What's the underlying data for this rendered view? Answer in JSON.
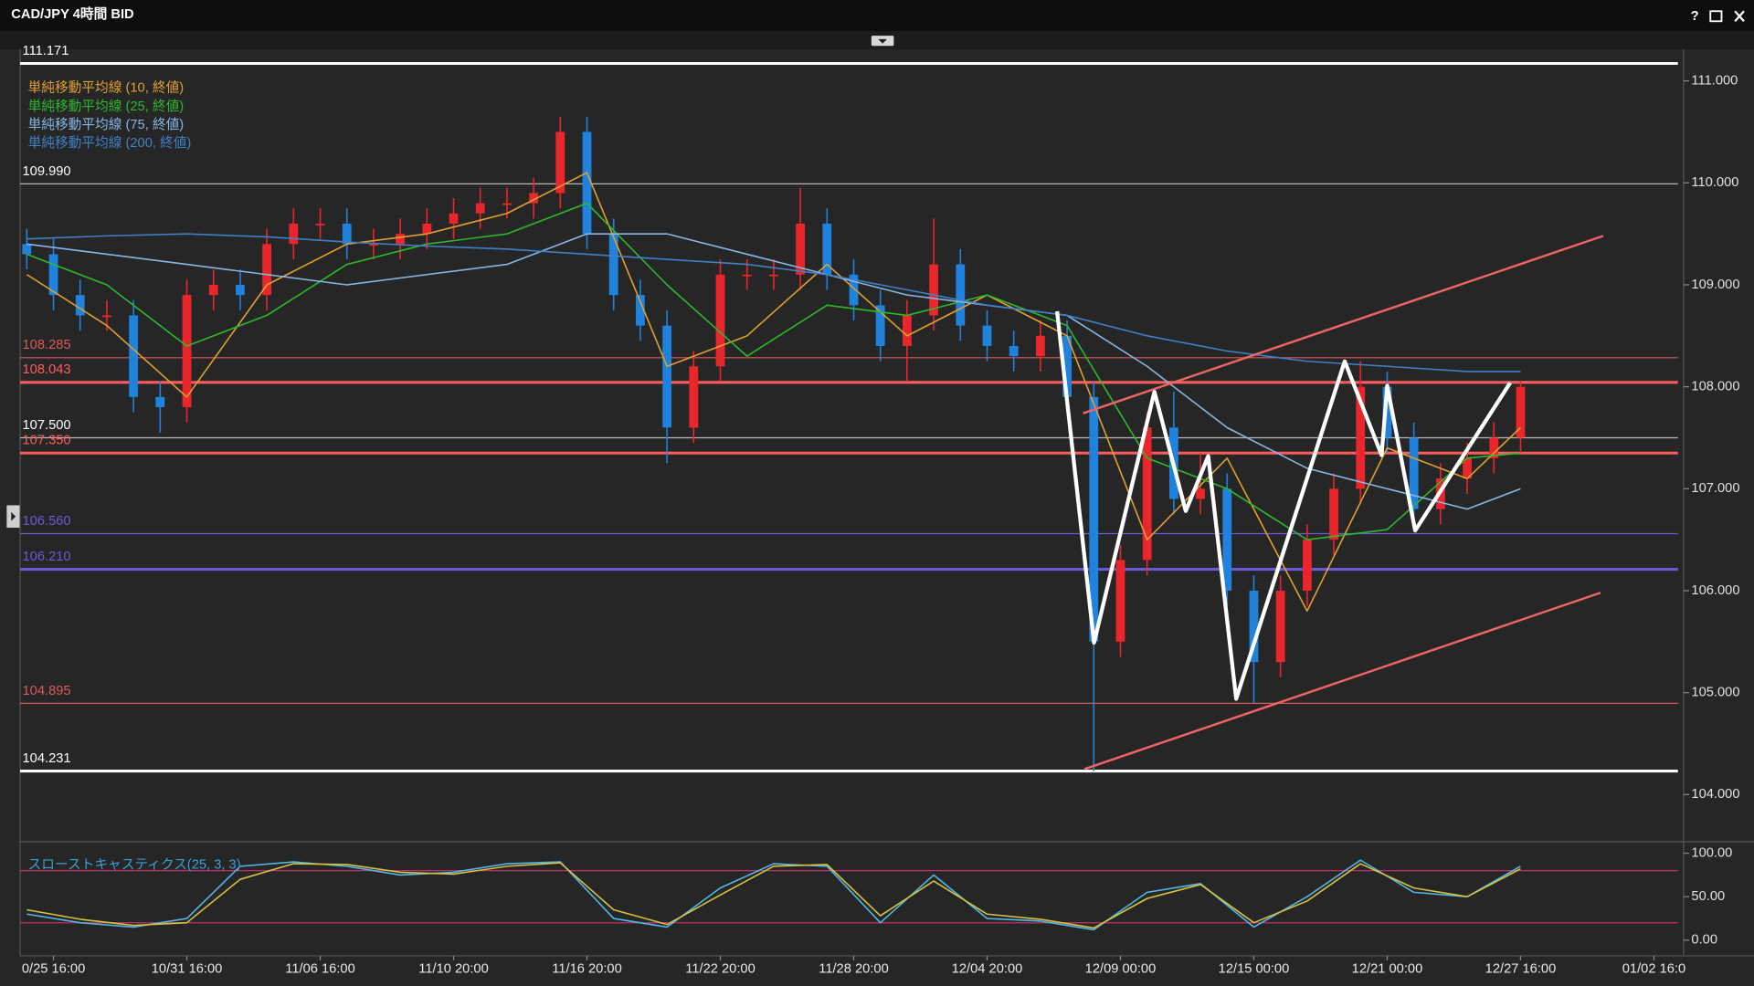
{
  "window": {
    "title": "CAD/JPY 4時間 BID",
    "help": "?"
  },
  "chart_data": [
    {
      "type": "candlestick",
      "xlim": [
        -2.5,
        121.8
      ],
      "ylim": [
        103.57,
        111.3
      ],
      "xticks": [
        {
          "value": 0,
          "label": "0/25 16:00"
        },
        {
          "value": 10,
          "label": "10/31 16:00"
        },
        {
          "value": 20,
          "label": "11/06 16:00"
        },
        {
          "value": 30,
          "label": "11/10 20:00"
        },
        {
          "value": 40,
          "label": "11/16 20:00"
        },
        {
          "value": 50,
          "label": "11/22 20:00"
        },
        {
          "value": 60,
          "label": "11/28 20:00"
        },
        {
          "value": 70,
          "label": "12/04 20:00"
        },
        {
          "value": 80,
          "label": "12/09 00:00"
        },
        {
          "value": 90,
          "label": "12/15 00:00"
        },
        {
          "value": 100,
          "label": "12/21 00:00"
        },
        {
          "value": 110,
          "label": "12/27 16:00"
        },
        {
          "value": 120,
          "label": "01/02 16:0"
        }
      ],
      "yticks": [
        {
          "value": 104,
          "label": "104.000"
        },
        {
          "value": 105,
          "label": "105.000"
        },
        {
          "value": 106,
          "label": "106.000"
        },
        {
          "value": 107,
          "label": "107.000"
        },
        {
          "value": 108,
          "label": "108.000"
        },
        {
          "value": 109,
          "label": "109.000"
        },
        {
          "value": 110,
          "label": "110.000"
        },
        {
          "value": 111,
          "label": "111.000"
        }
      ],
      "up_color": "#e8262b",
      "down_color": "#1f82dc",
      "x": [
        -2,
        0,
        2,
        4,
        6,
        8,
        10,
        12,
        14,
        16,
        18,
        20,
        22,
        24,
        26,
        28,
        30,
        32,
        34,
        36,
        38,
        40,
        42,
        44,
        46,
        48,
        50,
        52,
        54,
        56,
        58,
        60,
        62,
        64,
        66,
        68,
        70,
        72,
        74,
        76,
        78,
        80,
        82,
        84,
        86,
        88,
        90,
        92,
        94,
        96,
        98,
        100,
        102,
        104,
        106,
        108,
        110
      ],
      "open": [
        109.4,
        109.3,
        108.9,
        108.7,
        108.7,
        107.9,
        107.8,
        108.9,
        109.0,
        108.9,
        109.4,
        109.6,
        109.6,
        109.4,
        109.4,
        109.5,
        109.6,
        109.7,
        109.8,
        109.8,
        109.9,
        110.5,
        109.5,
        108.9,
        108.6,
        107.6,
        108.2,
        109.1,
        109.1,
        109.1,
        109.6,
        109.1,
        108.8,
        108.4,
        108.7,
        109.2,
        108.6,
        108.4,
        108.3,
        108.5,
        107.9,
        105.5,
        106.3,
        107.6,
        106.9,
        107.0,
        106.0,
        105.3,
        106.0,
        106.5,
        107.0,
        108.0,
        107.5,
        106.8,
        107.1,
        107.3,
        107.5
      ],
      "high": [
        109.55,
        109.45,
        109.05,
        108.85,
        108.85,
        108.05,
        109.05,
        109.15,
        109.15,
        109.55,
        109.75,
        109.75,
        109.75,
        109.55,
        109.65,
        109.75,
        109.85,
        109.95,
        109.95,
        110.05,
        110.65,
        110.65,
        109.65,
        109.05,
        108.75,
        108.35,
        109.25,
        109.25,
        109.25,
        109.95,
        109.75,
        109.25,
        108.95,
        108.85,
        109.65,
        109.35,
        108.75,
        108.55,
        108.65,
        108.65,
        108.05,
        106.45,
        107.75,
        107.95,
        107.35,
        107.15,
        106.15,
        106.15,
        106.65,
        107.15,
        108.25,
        108.15,
        107.65,
        107.25,
        107.45,
        107.65,
        108.05
      ],
      "low": [
        109.15,
        108.75,
        108.55,
        108.55,
        107.75,
        107.55,
        107.65,
        108.75,
        108.75,
        108.75,
        109.25,
        109.45,
        109.25,
        109.25,
        109.25,
        109.35,
        109.45,
        109.55,
        109.65,
        109.65,
        109.75,
        109.35,
        108.75,
        108.45,
        107.25,
        107.45,
        108.05,
        108.95,
        108.95,
        108.95,
        108.95,
        108.65,
        108.25,
        108.05,
        108.55,
        108.45,
        108.25,
        108.15,
        108.15,
        107.75,
        104.23,
        105.35,
        106.15,
        106.75,
        106.75,
        105.85,
        104.9,
        105.15,
        105.85,
        106.35,
        106.85,
        107.35,
        106.65,
        106.65,
        106.95,
        107.15,
        107.35
      ],
      "close": [
        109.3,
        108.9,
        108.7,
        108.7,
        107.9,
        107.8,
        108.9,
        109.0,
        108.9,
        109.4,
        109.6,
        109.6,
        109.4,
        109.4,
        109.5,
        109.6,
        109.7,
        109.8,
        109.8,
        109.9,
        110.5,
        109.5,
        108.9,
        108.6,
        107.6,
        108.2,
        109.1,
        109.1,
        109.1,
        109.6,
        109.1,
        108.8,
        108.4,
        108.7,
        109.2,
        108.6,
        108.4,
        108.3,
        108.5,
        107.9,
        105.5,
        106.3,
        107.6,
        106.9,
        107.0,
        106.0,
        105.3,
        106.0,
        106.5,
        107.0,
        108.0,
        107.5,
        106.8,
        107.1,
        107.3,
        107.5,
        108.0
      ],
      "series": [
        {
          "name": "単純移動平均線 (10, 終値)",
          "color": "#e0a030",
          "x": [
            -2,
            4,
            10,
            16,
            22,
            28,
            34,
            40,
            46,
            52,
            58,
            64,
            70,
            76,
            82,
            88,
            94,
            100,
            106,
            110
          ],
          "values": [
            109.1,
            108.6,
            107.9,
            109.0,
            109.4,
            109.5,
            109.7,
            110.1,
            108.2,
            108.5,
            109.2,
            108.5,
            108.9,
            108.5,
            106.5,
            107.3,
            105.8,
            107.4,
            107.1,
            107.6
          ]
        },
        {
          "name": "単純移動平均線 (25, 終値)",
          "color": "#2cb82c",
          "x": [
            -2,
            4,
            10,
            16,
            22,
            28,
            34,
            40,
            46,
            52,
            58,
            64,
            70,
            76,
            82,
            88,
            94,
            100,
            106,
            110
          ],
          "values": [
            109.3,
            109.0,
            108.4,
            108.7,
            109.2,
            109.4,
            109.5,
            109.8,
            109.0,
            108.3,
            108.8,
            108.7,
            108.9,
            108.6,
            107.3,
            107.0,
            106.5,
            106.6,
            107.3,
            107.35
          ]
        },
        {
          "name": "単純移動平均線 (75, 終値)",
          "color": "#86b6e6",
          "x": [
            -2,
            4,
            10,
            16,
            22,
            28,
            34,
            40,
            46,
            52,
            58,
            64,
            70,
            76,
            82,
            88,
            94,
            100,
            106,
            110
          ],
          "values": [
            109.4,
            109.3,
            109.2,
            109.1,
            109.0,
            109.1,
            109.2,
            109.5,
            109.5,
            109.3,
            109.1,
            108.9,
            108.8,
            108.7,
            108.2,
            107.6,
            107.2,
            107.0,
            106.8,
            107.0
          ]
        },
        {
          "name": "単純移動平均線 (200, 終値)",
          "color": "#3f80c8",
          "x": [
            -2,
            4,
            10,
            16,
            22,
            28,
            34,
            40,
            46,
            52,
            58,
            64,
            70,
            76,
            82,
            88,
            94,
            100,
            106,
            110
          ],
          "values": [
            109.45,
            109.48,
            109.5,
            109.47,
            109.42,
            109.38,
            109.35,
            109.3,
            109.25,
            109.2,
            109.1,
            108.95,
            108.8,
            108.7,
            108.5,
            108.35,
            108.25,
            108.2,
            108.15,
            108.15
          ]
        }
      ],
      "levels": [
        {
          "value": 111.171,
          "label": "111.171",
          "color": "#ffffff",
          "style": "thick"
        },
        {
          "value": 109.99,
          "label": "109.990",
          "color": "#b8b8b8",
          "style": "thin"
        },
        {
          "value": 108.285,
          "label": "108.285",
          "color": "#d85a5a",
          "style": "thin"
        },
        {
          "value": 108.043,
          "label": "108.043",
          "color": "#ff5c5c",
          "style": "thick"
        },
        {
          "value": 107.5,
          "label": "107.500",
          "color": "#b8b8b8",
          "style": "thin"
        },
        {
          "value": 107.35,
          "label": "107.350",
          "color": "#ff5c5c",
          "style": "thick"
        },
        {
          "value": 106.56,
          "label": "106.560",
          "color": "#6a5ad8",
          "style": "thin"
        },
        {
          "value": 106.21,
          "label": "106.210",
          "color": "#6a5ad8",
          "style": "thick"
        },
        {
          "value": 104.895,
          "label": "104.895",
          "color": "#d85a5a",
          "style": "thin"
        },
        {
          "value": 104.231,
          "label": "104.231",
          "color": "#ffffff",
          "style": "thick"
        }
      ],
      "trendlines": [
        {
          "color": "#f06464",
          "x": [
            77.2,
            116.2
          ],
          "values": [
            107.74,
            109.48
          ]
        },
        {
          "color": "#f06464",
          "x": [
            77.3,
            116.0
          ],
          "values": [
            104.25,
            105.98
          ]
        }
      ],
      "zigzag": {
        "color": "#ffffff",
        "x": [
          75.25,
          78.02,
          82.55,
          84.9,
          86.58,
          88.68,
          96.81,
          99.58,
          100.0,
          102.1,
          109.23
        ],
        "values": [
          108.74,
          105.49,
          107.95,
          106.78,
          107.32,
          104.94,
          108.25,
          107.33,
          108.01,
          106.59,
          108.04
        ]
      }
    },
    {
      "type": "line",
      "title": "スローストキャスティクス(25, 3, 3)",
      "ylim": [
        -18,
        108
      ],
      "yticks": [
        {
          "value": 0,
          "label": "0.00"
        },
        {
          "value": 50,
          "label": "50.00"
        },
        {
          "value": 100,
          "label": "100.00"
        }
      ],
      "levels": [
        {
          "value": 80,
          "color": "#c0306a"
        },
        {
          "value": 20,
          "color": "#c0306a"
        }
      ],
      "series": [
        {
          "color": "#4fb8e6",
          "x": [
            -2,
            2,
            6,
            10,
            14,
            18,
            22,
            26,
            30,
            34,
            38,
            42,
            46,
            50,
            54,
            58,
            62,
            66,
            70,
            74,
            78,
            82,
            86,
            90,
            94,
            98,
            102,
            106,
            110
          ],
          "values": [
            30,
            20,
            15,
            25,
            85,
            90,
            85,
            75,
            78,
            88,
            90,
            25,
            15,
            60,
            88,
            85,
            20,
            75,
            25,
            22,
            12,
            55,
            65,
            15,
            50,
            92,
            55,
            50,
            85
          ]
        },
        {
          "color": "#d8c040",
          "x": [
            -2,
            2,
            6,
            10,
            14,
            18,
            22,
            26,
            30,
            34,
            38,
            42,
            46,
            50,
            54,
            58,
            62,
            66,
            70,
            74,
            78,
            82,
            86,
            90,
            94,
            98,
            102,
            106,
            110
          ],
          "values": [
            35,
            24,
            17,
            20,
            70,
            88,
            87,
            78,
            76,
            85,
            89,
            35,
            18,
            52,
            85,
            87,
            28,
            68,
            30,
            24,
            14,
            48,
            64,
            20,
            45,
            88,
            60,
            50,
            82
          ]
        }
      ]
    }
  ]
}
